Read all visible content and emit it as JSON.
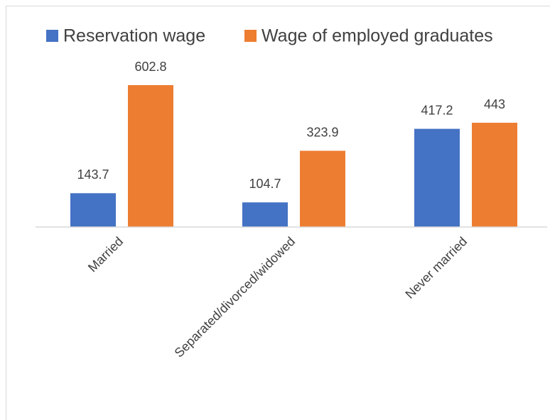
{
  "chart_data": {
    "type": "bar",
    "categories": [
      "Married",
      "Separated/divorced/widowed",
      "Never married"
    ],
    "series": [
      {
        "name": "Reservation wage",
        "color": "#4472c4",
        "values": [
          143.7,
          104.7,
          417.2
        ]
      },
      {
        "name": "Wage of employed graduates",
        "color": "#ed7d31",
        "values": [
          602.8,
          323.9,
          443
        ]
      }
    ],
    "legend": "top"
  }
}
